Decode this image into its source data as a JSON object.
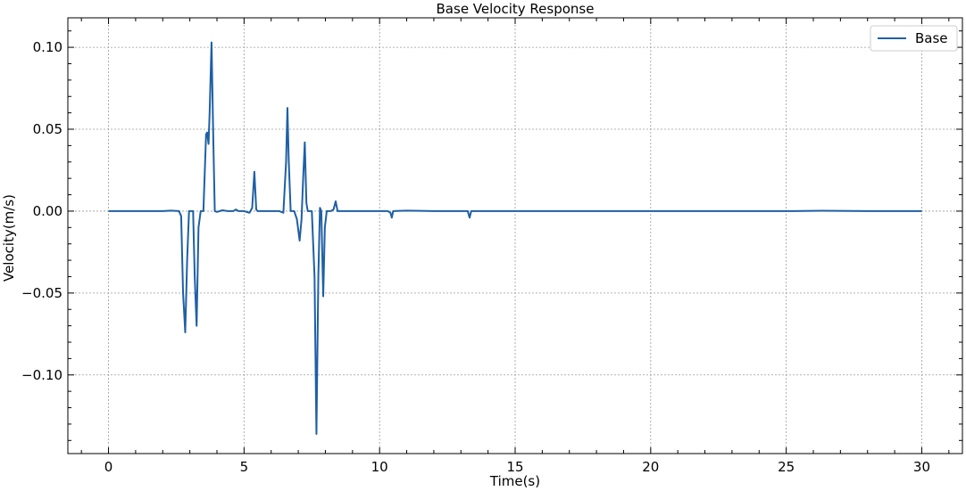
{
  "chart_data": {
    "type": "line",
    "title": "Base Velocity Response",
    "xlabel": "Time(s)",
    "ylabel": "Velocity(m/s)",
    "xlim": [
      -1.5,
      31.5
    ],
    "ylim": [
      -0.148,
      0.118
    ],
    "x_ticks": [
      0,
      5,
      10,
      15,
      20,
      25,
      30
    ],
    "x_tick_labels": [
      "0",
      "5",
      "10",
      "15",
      "20",
      "25",
      "30"
    ],
    "y_ticks": [
      0.1,
      0.05,
      0.0,
      -0.05,
      -0.1
    ],
    "y_tick_labels": [
      "0.10",
      "0.05",
      "0.00",
      "−0.05",
      "−0.10"
    ],
    "grid": true,
    "legend_position": "top-right",
    "series": [
      {
        "name": "Base",
        "color": "#1f5fa5",
        "points": [
          [
            0.0,
            0.0
          ],
          [
            1.0,
            0.0
          ],
          [
            2.0,
            0.0
          ],
          [
            2.3,
            0.0003
          ],
          [
            2.6,
            0.0
          ],
          [
            2.68,
            -0.003
          ],
          [
            2.75,
            -0.05
          ],
          [
            2.83,
            -0.074
          ],
          [
            2.9,
            -0.03
          ],
          [
            2.97,
            0.0
          ],
          [
            3.12,
            0.0
          ],
          [
            3.18,
            -0.04
          ],
          [
            3.25,
            -0.07
          ],
          [
            3.32,
            -0.01
          ],
          [
            3.4,
            0.0
          ],
          [
            3.5,
            0.0
          ],
          [
            3.6,
            0.047
          ],
          [
            3.64,
            0.048
          ],
          [
            3.69,
            0.041
          ],
          [
            3.73,
            0.06
          ],
          [
            3.8,
            0.103
          ],
          [
            3.87,
            0.04
          ],
          [
            3.92,
            0.0
          ],
          [
            4.0,
            -0.0005
          ],
          [
            4.2,
            0.0005
          ],
          [
            4.4,
            0.0
          ],
          [
            4.6,
            0.0
          ],
          [
            4.7,
            0.001
          ],
          [
            4.8,
            0.0
          ],
          [
            5.0,
            0.0
          ],
          [
            5.2,
            -0.001
          ],
          [
            5.3,
            0.002
          ],
          [
            5.38,
            0.024
          ],
          [
            5.45,
            0.001
          ],
          [
            5.5,
            0.0
          ],
          [
            6.0,
            0.0
          ],
          [
            6.3,
            0.0
          ],
          [
            6.45,
            -0.001
          ],
          [
            6.55,
            0.03
          ],
          [
            6.6,
            0.063
          ],
          [
            6.65,
            0.03
          ],
          [
            6.72,
            0.0
          ],
          [
            6.85,
            0.0
          ],
          [
            6.95,
            -0.005
          ],
          [
            7.05,
            -0.018
          ],
          [
            7.12,
            -0.005
          ],
          [
            7.18,
            0.02
          ],
          [
            7.24,
            0.042
          ],
          [
            7.3,
            0.005
          ],
          [
            7.35,
            0.0
          ],
          [
            7.5,
            0.0
          ],
          [
            7.6,
            -0.04
          ],
          [
            7.67,
            -0.136
          ],
          [
            7.74,
            -0.04
          ],
          [
            7.8,
            0.002
          ],
          [
            7.85,
            0.0
          ],
          [
            7.92,
            -0.052
          ],
          [
            7.98,
            -0.01
          ],
          [
            8.05,
            0.0
          ],
          [
            8.2,
            0.0
          ],
          [
            8.3,
            0.001
          ],
          [
            8.38,
            0.006
          ],
          [
            8.45,
            0.0
          ],
          [
            9.0,
            0.0
          ],
          [
            10.0,
            0.0
          ],
          [
            10.3,
            0.0
          ],
          [
            10.4,
            -0.001
          ],
          [
            10.45,
            -0.004
          ],
          [
            10.5,
            0.0
          ],
          [
            11.0,
            0.0003
          ],
          [
            12.0,
            0.0
          ],
          [
            13.0,
            0.0
          ],
          [
            13.25,
            0.0
          ],
          [
            13.32,
            -0.004
          ],
          [
            13.38,
            0.0
          ],
          [
            14.0,
            0.0
          ],
          [
            15.0,
            0.0
          ],
          [
            20.0,
            0.0
          ],
          [
            25.0,
            0.0
          ],
          [
            26.3,
            0.0002
          ],
          [
            28.0,
            0.0
          ],
          [
            30.0,
            0.0
          ]
        ]
      }
    ]
  }
}
